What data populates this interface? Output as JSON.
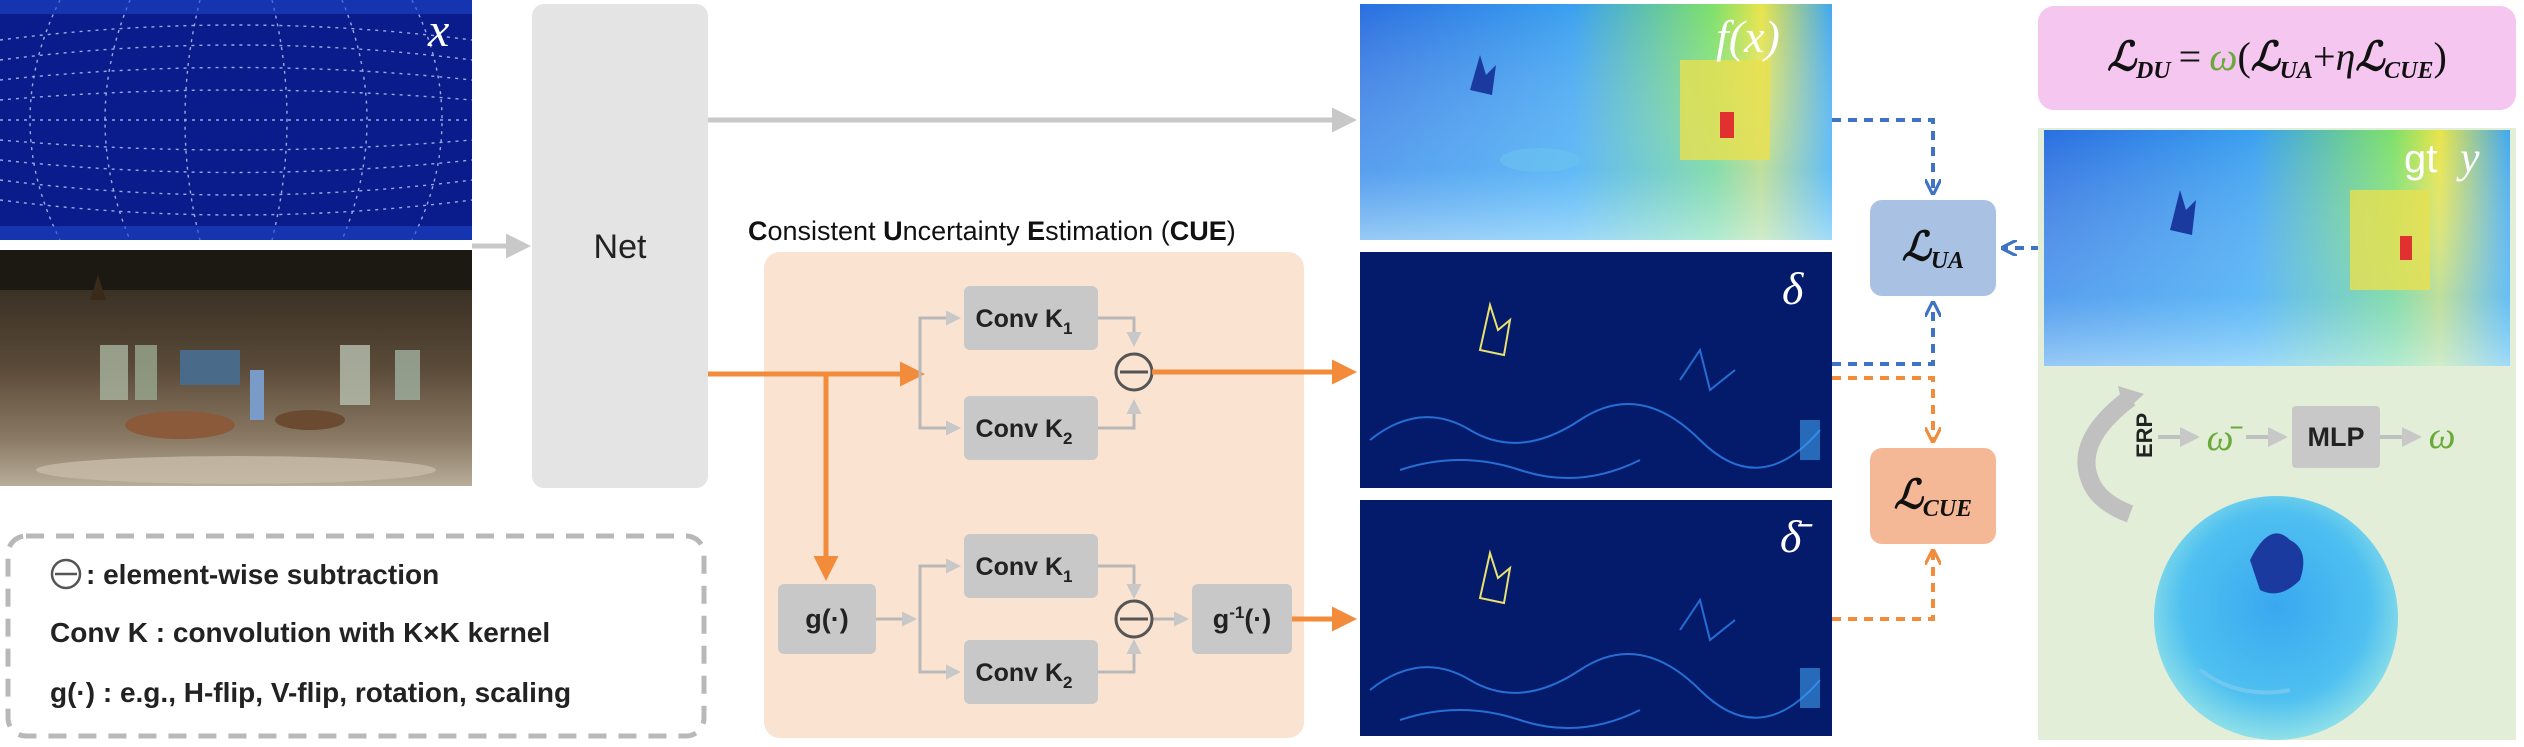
{
  "inputs": {
    "x_label": "x"
  },
  "net": {
    "label": "Net"
  },
  "cue": {
    "title_parts": [
      {
        "text": "C",
        "bold": true
      },
      {
        "text": "onsistent ",
        "bold": false
      },
      {
        "text": "U",
        "bold": true
      },
      {
        "text": "ncertainty ",
        "bold": false
      },
      {
        "text": "E",
        "bold": true
      },
      {
        "text": "stimation (",
        "bold": false
      },
      {
        "text": "CUE",
        "bold": true
      },
      {
        "text": ")",
        "bold": false
      }
    ],
    "conv_k1": "Conv K",
    "conv_k1_sub": "1",
    "conv_k2": "Conv K",
    "conv_k2_sub": "2",
    "g_label": "g(·)",
    "ginv_label": "g",
    "ginv_sup": "-1",
    "ginv_tail": "(·)"
  },
  "outputs": {
    "fx_label": "f(x)",
    "delta_label": "δ",
    "delta_bar_label": "δ̄"
  },
  "losses": {
    "ua_label": "ℒ",
    "ua_sub": "UA",
    "cue_label": "ℒ",
    "cue_sub": "CUE",
    "du_formula": {
      "lhs": "ℒ",
      "lhs_sub": "DU",
      "eq": "=",
      "omega": "ω",
      "open": "(",
      "t1": "ℒ",
      "t1_sub": "UA",
      "plus": "+",
      "eta": "η",
      "t2": "ℒ",
      "t2_sub": "CUE",
      "close": ")"
    }
  },
  "right_panel": {
    "gt_label": "gt",
    "y_label": "y",
    "erp_label": "ERP",
    "omega_bar": "ω̄",
    "mlp_label": "MLP",
    "omega": "ω"
  },
  "legend": {
    "line1": ": element-wise subtraction",
    "line2": "Conv K : convolution with K×K kernel",
    "line3": "g(·) : e.g., H-flip, V-flip, rotation, scaling"
  },
  "colors": {
    "orange": "#f28c3a",
    "blue_dash": "#3f74c4",
    "gray_arrow": "#c8c8c8",
    "cue_bg": "#fbe3d2",
    "net_bg": "#e4e4e4",
    "ua_box": "#a9c1e2",
    "cue_box": "#f5b896",
    "du_box": "#f4c6f0",
    "right_bg": "#e3eed9",
    "omega_green": "#6aaa3a"
  }
}
